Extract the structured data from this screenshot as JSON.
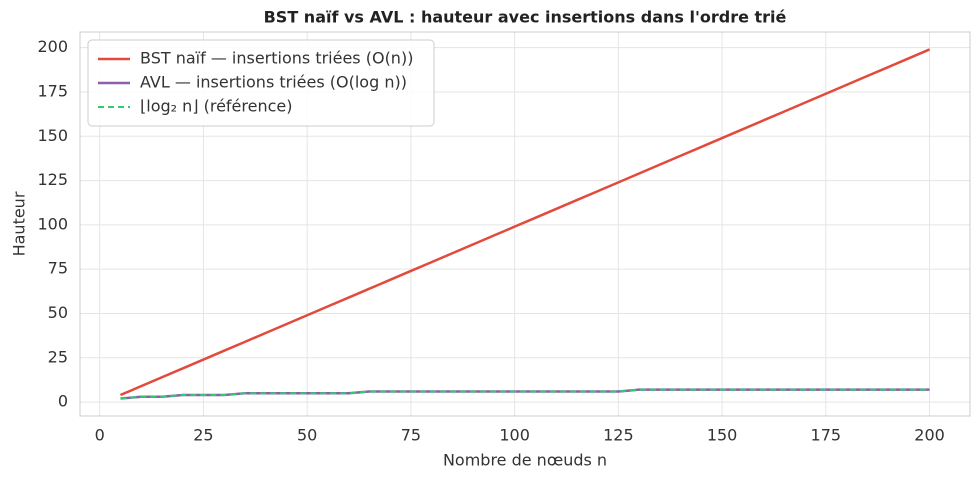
{
  "chart_data": {
    "type": "line",
    "title": "BST naïf vs AVL : hauteur avec insertions dans l'ordre trié",
    "xlabel": "Nombre de nœuds n",
    "ylabel": "Hauteur",
    "x": [
      5,
      10,
      15,
      20,
      25,
      30,
      35,
      40,
      45,
      50,
      55,
      60,
      65,
      70,
      75,
      80,
      85,
      90,
      95,
      100,
      105,
      110,
      115,
      120,
      125,
      130,
      135,
      140,
      145,
      150,
      155,
      160,
      165,
      170,
      175,
      180,
      185,
      190,
      195,
      200
    ],
    "series": [
      {
        "name": "BST naïf — insertions triées (O(n))",
        "color": "#e24a3b",
        "dash": false,
        "values": [
          4,
          9,
          14,
          19,
          24,
          29,
          34,
          39,
          44,
          49,
          54,
          59,
          64,
          69,
          74,
          79,
          84,
          89,
          94,
          99,
          104,
          109,
          114,
          119,
          124,
          129,
          134,
          139,
          144,
          149,
          154,
          159,
          164,
          169,
          174,
          179,
          184,
          189,
          194,
          199
        ]
      },
      {
        "name": "AVL — insertions triées (O(log n))",
        "color": "#8e5ea8",
        "dash": false,
        "values": [
          2,
          3,
          3,
          4,
          4,
          4,
          5,
          5,
          5,
          5,
          5,
          5,
          6,
          6,
          6,
          6,
          6,
          6,
          6,
          6,
          6,
          6,
          6,
          6,
          6,
          7,
          7,
          7,
          7,
          7,
          7,
          7,
          7,
          7,
          7,
          7,
          7,
          7,
          7,
          7
        ]
      },
      {
        "name": "⌊log₂ n⌋ (référence)",
        "color": "#2ecc71",
        "dash": true,
        "values": [
          2,
          3,
          3,
          4,
          4,
          4,
          5,
          5,
          5,
          5,
          5,
          5,
          6,
          6,
          6,
          6,
          6,
          6,
          6,
          6,
          6,
          6,
          6,
          6,
          6,
          7,
          7,
          7,
          7,
          7,
          7,
          7,
          7,
          7,
          7,
          7,
          7,
          7,
          7,
          7
        ]
      }
    ],
    "xlim": [
      -4.75,
      209.75
    ],
    "ylim": [
      -7.85,
      208.85
    ],
    "xticks": [
      0,
      25,
      50,
      75,
      100,
      125,
      150,
      175,
      200
    ],
    "yticks": [
      0,
      25,
      50,
      75,
      100,
      125,
      150,
      175,
      200
    ],
    "grid": true,
    "legend": "upper left"
  }
}
